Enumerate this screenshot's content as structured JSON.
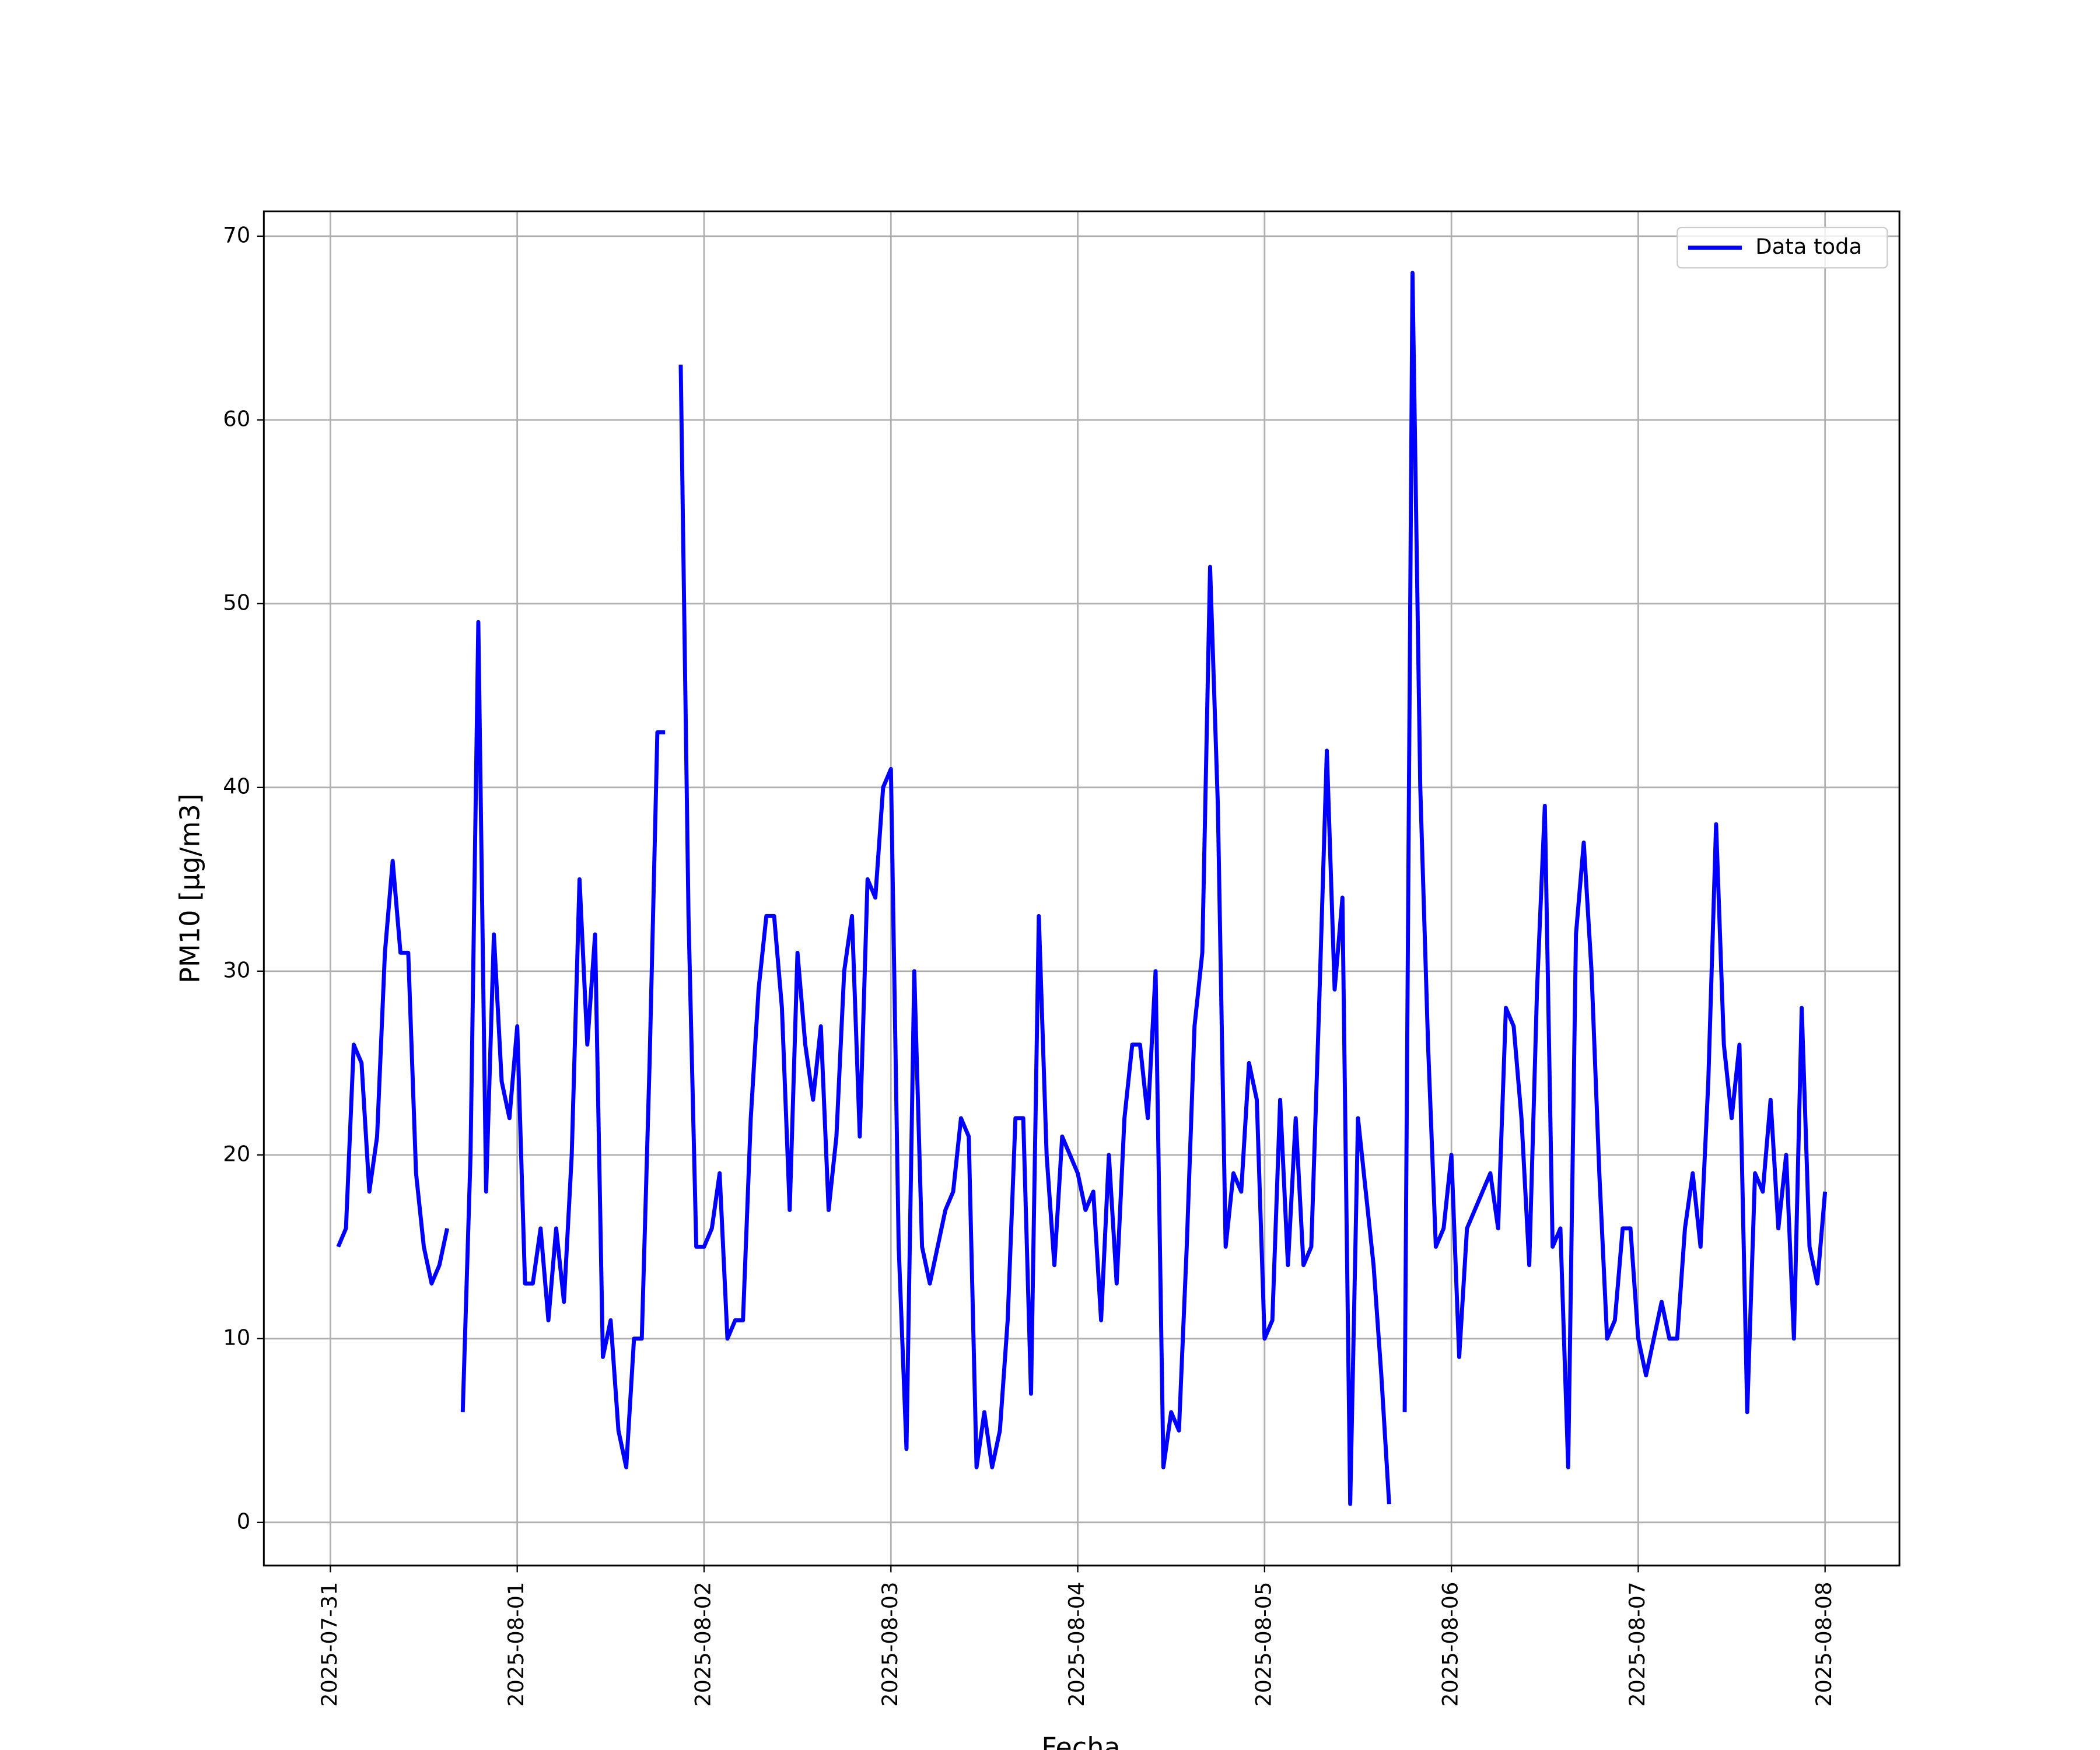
{
  "chart_data": {
    "type": "line",
    "xlabel": "Fecha",
    "ylabel": "PM10 [μg/m3]",
    "x": [
      "2025-07-31T01:00",
      "2025-07-31T02:00",
      "2025-07-31T03:00",
      "2025-07-31T04:00",
      "2025-07-31T05:00",
      "2025-07-31T06:00",
      "2025-07-31T07:00",
      "2025-07-31T08:00",
      "2025-07-31T09:00",
      "2025-07-31T10:00",
      "2025-07-31T11:00",
      "2025-07-31T12:00",
      "2025-07-31T13:00",
      "2025-07-31T14:00",
      "2025-07-31T15:00",
      "2025-07-31T16:00",
      "2025-07-31T17:00",
      "2025-07-31T18:00",
      "2025-07-31T19:00",
      "2025-07-31T20:00",
      "2025-07-31T21:00",
      "2025-07-31T22:00",
      "2025-07-31T23:00",
      "2025-08-01T00:00",
      "2025-08-01T01:00",
      "2025-08-01T02:00",
      "2025-08-01T03:00",
      "2025-08-01T04:00",
      "2025-08-01T05:00",
      "2025-08-01T06:00",
      "2025-08-01T07:00",
      "2025-08-01T08:00",
      "2025-08-01T09:00",
      "2025-08-01T10:00",
      "2025-08-01T11:00",
      "2025-08-01T12:00",
      "2025-08-01T13:00",
      "2025-08-01T14:00",
      "2025-08-01T15:00",
      "2025-08-01T16:00",
      "2025-08-01T17:00",
      "2025-08-01T18:00",
      "2025-08-01T19:00",
      "2025-08-01T20:00",
      "2025-08-01T21:00",
      "2025-08-01T22:00",
      "2025-08-01T23:00",
      "2025-08-02T00:00",
      "2025-08-02T01:00",
      "2025-08-02T02:00",
      "2025-08-02T03:00",
      "2025-08-02T04:00",
      "2025-08-02T05:00",
      "2025-08-02T06:00",
      "2025-08-02T07:00",
      "2025-08-02T08:00",
      "2025-08-02T09:00",
      "2025-08-02T10:00",
      "2025-08-02T11:00",
      "2025-08-02T12:00",
      "2025-08-02T13:00",
      "2025-08-02T14:00",
      "2025-08-02T15:00",
      "2025-08-02T16:00",
      "2025-08-02T17:00",
      "2025-08-02T18:00",
      "2025-08-02T19:00",
      "2025-08-02T20:00",
      "2025-08-02T21:00",
      "2025-08-02T22:00",
      "2025-08-02T23:00",
      "2025-08-03T00:00",
      "2025-08-03T01:00",
      "2025-08-03T02:00",
      "2025-08-03T03:00",
      "2025-08-03T04:00",
      "2025-08-03T05:00",
      "2025-08-03T06:00",
      "2025-08-03T07:00",
      "2025-08-03T08:00",
      "2025-08-03T09:00",
      "2025-08-03T10:00",
      "2025-08-03T11:00",
      "2025-08-03T12:00",
      "2025-08-03T13:00",
      "2025-08-03T14:00",
      "2025-08-03T15:00",
      "2025-08-03T16:00",
      "2025-08-03T17:00",
      "2025-08-03T18:00",
      "2025-08-03T19:00",
      "2025-08-03T20:00",
      "2025-08-03T21:00",
      "2025-08-03T22:00",
      "2025-08-03T23:00",
      "2025-08-04T00:00",
      "2025-08-04T01:00",
      "2025-08-04T02:00",
      "2025-08-04T03:00",
      "2025-08-04T04:00",
      "2025-08-04T05:00",
      "2025-08-04T06:00",
      "2025-08-04T07:00",
      "2025-08-04T08:00",
      "2025-08-04T09:00",
      "2025-08-04T10:00",
      "2025-08-04T11:00",
      "2025-08-04T12:00",
      "2025-08-04T13:00",
      "2025-08-04T14:00",
      "2025-08-04T15:00",
      "2025-08-04T16:00",
      "2025-08-04T17:00",
      "2025-08-04T18:00",
      "2025-08-04T19:00",
      "2025-08-04T20:00",
      "2025-08-04T21:00",
      "2025-08-04T22:00",
      "2025-08-04T23:00",
      "2025-08-05T00:00",
      "2025-08-05T01:00",
      "2025-08-05T02:00",
      "2025-08-05T03:00",
      "2025-08-05T04:00",
      "2025-08-05T05:00",
      "2025-08-05T06:00",
      "2025-08-05T07:00",
      "2025-08-05T08:00",
      "2025-08-05T09:00",
      "2025-08-05T10:00",
      "2025-08-05T11:00",
      "2025-08-05T12:00",
      "2025-08-05T13:00",
      "2025-08-05T14:00",
      "2025-08-05T15:00",
      "2025-08-05T16:00",
      "2025-08-05T17:00",
      "2025-08-05T18:00",
      "2025-08-05T19:00",
      "2025-08-05T20:00",
      "2025-08-05T21:00",
      "2025-08-05T22:00",
      "2025-08-05T23:00",
      "2025-08-06T00:00",
      "2025-08-06T01:00",
      "2025-08-06T02:00",
      "2025-08-06T03:00",
      "2025-08-06T04:00",
      "2025-08-06T05:00",
      "2025-08-06T06:00",
      "2025-08-06T07:00",
      "2025-08-06T08:00",
      "2025-08-06T09:00",
      "2025-08-06T10:00",
      "2025-08-06T11:00",
      "2025-08-06T12:00",
      "2025-08-06T13:00",
      "2025-08-06T14:00",
      "2025-08-06T15:00",
      "2025-08-06T16:00",
      "2025-08-06T17:00",
      "2025-08-06T18:00",
      "2025-08-06T19:00",
      "2025-08-06T20:00",
      "2025-08-06T21:00",
      "2025-08-06T22:00",
      "2025-08-06T23:00",
      "2025-08-07T00:00",
      "2025-08-07T01:00",
      "2025-08-07T02:00",
      "2025-08-07T03:00",
      "2025-08-07T04:00",
      "2025-08-07T05:00",
      "2025-08-07T06:00",
      "2025-08-07T07:00",
      "2025-08-07T08:00",
      "2025-08-07T09:00",
      "2025-08-07T10:00",
      "2025-08-07T11:00",
      "2025-08-07T12:00",
      "2025-08-07T13:00",
      "2025-08-07T14:00",
      "2025-08-07T15:00",
      "2025-08-07T16:00",
      "2025-08-07T17:00",
      "2025-08-07T18:00",
      "2025-08-07T19:00",
      "2025-08-07T20:00",
      "2025-08-07T21:00",
      "2025-08-07T22:00",
      "2025-08-07T23:00",
      "2025-08-08T00:00"
    ],
    "series": [
      {
        "name": "Data toda",
        "color": "#0000ff",
        "values": [
          15,
          16,
          26,
          25,
          18,
          21,
          31,
          36,
          31,
          31,
          19,
          15,
          13,
          14,
          16,
          null,
          6,
          20,
          49,
          18,
          32,
          24,
          22,
          27,
          13,
          13,
          16,
          11,
          16,
          12,
          20,
          35,
          26,
          32,
          9,
          11,
          5,
          3,
          10,
          10,
          25,
          43,
          43,
          null,
          63,
          33,
          15,
          15,
          16,
          19,
          10,
          11,
          11,
          22,
          29,
          33,
          33,
          28,
          17,
          31,
          26,
          23,
          27,
          17,
          21,
          30,
          33,
          21,
          35,
          34,
          40,
          41,
          15,
          4,
          30,
          15,
          13,
          15,
          17,
          18,
          22,
          21,
          3,
          6,
          3,
          5,
          11,
          22,
          22,
          7,
          33,
          20,
          14,
          21,
          20,
          19,
          17,
          18,
          11,
          20,
          13,
          22,
          26,
          26,
          22,
          30,
          3,
          6,
          5,
          15,
          27,
          31,
          52,
          39,
          15,
          19,
          18,
          25,
          23,
          10,
          11,
          23,
          14,
          22,
          14,
          15,
          28,
          42,
          29,
          34,
          1,
          22,
          18,
          14,
          8,
          1,
          null,
          6,
          68,
          40,
          26,
          15,
          16,
          20,
          9,
          16,
          17,
          18,
          19,
          16,
          28,
          27,
          22,
          14,
          29,
          39,
          15,
          16,
          3,
          32,
          37,
          30,
          19,
          10,
          11,
          16,
          16,
          10,
          8,
          10,
          12,
          10,
          10,
          16,
          19,
          15,
          24,
          38,
          26,
          22,
          26,
          6,
          19,
          18,
          23,
          16,
          20,
          10,
          28,
          15,
          13,
          18
        ]
      }
    ],
    "xlim": [
      "2025-07-30T15:27",
      "2025-08-08T09:33"
    ],
    "xticks": [
      "2025-07-31",
      "2025-08-01",
      "2025-08-02",
      "2025-08-03",
      "2025-08-04",
      "2025-08-05",
      "2025-08-06",
      "2025-08-07",
      "2025-08-08"
    ],
    "ylim": [
      -2.35,
      71.35
    ],
    "yticks": [
      0,
      10,
      20,
      30,
      40,
      50,
      60,
      70
    ],
    "grid": true,
    "legend": "upper right"
  }
}
